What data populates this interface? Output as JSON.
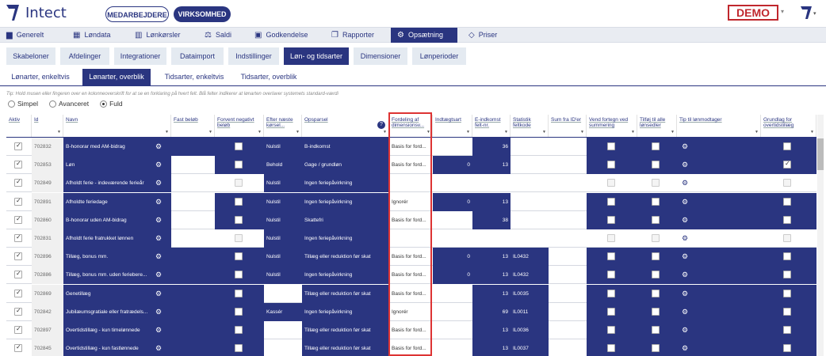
{
  "header": {
    "app_name": "Intect",
    "employees_btn": "MEDARBEJDERE",
    "company_btn": "VIRKSOMHED",
    "demo_label": "DEMO"
  },
  "nav": [
    {
      "label": "Generelt",
      "icon": "bar-chart-icon"
    },
    {
      "label": "Løndata",
      "icon": "table-icon"
    },
    {
      "label": "Lønkørsler",
      "icon": "book-icon"
    },
    {
      "label": "Saldi",
      "icon": "scale-icon"
    },
    {
      "label": "Godkendelse",
      "icon": "calendar-check-icon"
    },
    {
      "label": "Rapporter",
      "icon": "copy-icon"
    },
    {
      "label": "Opsætning",
      "icon": "gear-icon"
    },
    {
      "label": "Priser",
      "icon": "diamond-icon"
    }
  ],
  "subnav": [
    "Skabeloner",
    "Afdelinger",
    "Integrationer",
    "Dataimport",
    "Indstillinger",
    "Løn- og tidsarter",
    "Dimensioner",
    "Lønperioder"
  ],
  "tabs": [
    "Lønarter, enkeltvis",
    "Lønarter, overblik",
    "Tidsarter, enkeltvis",
    "Tidsarter, overblik"
  ],
  "tip": "Tip: Hold musen eller fingeren over en kolonneoverskrift for at se en forklaring på hvert felt. Blå felter indikerer at lønarten overlaver systemets standard-værdi",
  "view_options": [
    "Simpel",
    "Avanceret",
    "Fuld"
  ],
  "view_selected": "Fuld",
  "columns": {
    "active": "Aktiv",
    "id": "Id",
    "name": "Navn",
    "fixed_amount": "Fast beløb",
    "expect_negative": "Forvent negativt beløb",
    "after_next": "Efter næste kørsel...",
    "savings": "Opsparsel",
    "dimension_split": "Fordeling af dimensionsv...",
    "income_type": "Indtægtsart",
    "e_income_field": "E-indkomst felt-nr.",
    "stat_field": "Statistik feltkode",
    "sum_from_ids": "Sum fra ID'er",
    "flip_sign": "Vend fortegn ved summering",
    "add_to_all": "Tilføj til alle lønsedler",
    "tip_recipient": "Tip til lønmodtager",
    "base_supplement": "Grundlag for overtidstillæg"
  },
  "rows": [
    {
      "id": "702832",
      "name": "B-honorar med AM-bidrag",
      "after": "Nulstil",
      "savings": "B-indkomst",
      "dim": "Basis for ford...",
      "income": "",
      "efield": "36",
      "stat": "",
      "add_chk": false,
      "base_chk": false
    },
    {
      "id": "702853",
      "name": "Løn",
      "after": "Behold",
      "savings": "Gage / grundløn",
      "dim": "Basis for ford...",
      "income": "0",
      "efield": "13",
      "stat": "",
      "add_chk": false,
      "base_chk": true
    },
    {
      "id": "702849",
      "name": "Afholdt ferie - indeværende ferieår",
      "after": "Nulstil",
      "savings": "Ingen feriepåvirkning",
      "dim": "",
      "income": "",
      "efield": "",
      "stat": "",
      "add_chk": false,
      "base_chk": false
    },
    {
      "id": "702891",
      "name": "Afholdte feriedage",
      "after": "Nulstil",
      "savings": "Ingen feriepåvirkning",
      "dim": "Ignorér",
      "income": "0",
      "efield": "13",
      "stat": "",
      "add_chk": false,
      "base_chk": false
    },
    {
      "id": "702860",
      "name": "B-honorar uden AM-bidrag",
      "after": "Nulstil",
      "savings": "Skattefri",
      "dim": "Basis for ford...",
      "income": "",
      "efield": "38",
      "stat": "",
      "add_chk": false,
      "base_chk": false
    },
    {
      "id": "702831",
      "name": "Afholdt ferie fratrukket lønnen",
      "after": "Nulstil",
      "savings": "Ingen feriepåvirkning",
      "dim": "",
      "income": "",
      "efield": "",
      "stat": "",
      "add_chk": false,
      "base_chk": false
    },
    {
      "id": "702896",
      "name": "Tillæg, bonus mm.",
      "after": "Nulstil",
      "savings": "Tillæg eller reduktion før skat",
      "dim": "Basis for ford...",
      "income": "0",
      "efield": "13",
      "stat": "IL0432",
      "add_chk": false,
      "base_chk": false
    },
    {
      "id": "702886",
      "name": "Tillæg, bonus mm. uden feriebere...",
      "after": "Nulstil",
      "savings": "Ingen feriepåvirkning",
      "dim": "Basis for ford...",
      "income": "0",
      "efield": "13",
      "stat": "IL0432",
      "add_chk": false,
      "base_chk": false
    },
    {
      "id": "702869",
      "name": "Genetillæg",
      "after": "",
      "savings": "Tillæg eller reduktion før skat",
      "dim": "Basis for ford...",
      "income": "",
      "efield": "13",
      "stat": "IL0035",
      "add_chk": false,
      "base_chk": false
    },
    {
      "id": "702842",
      "name": "Jubilæumsgratiale eller fratrædels...",
      "after": "Kassér",
      "savings": "Ingen feriepåvirkning",
      "dim": "Ignorér",
      "income": "",
      "efield": "69",
      "stat": "IL0011",
      "add_chk": false,
      "base_chk": false
    },
    {
      "id": "702897",
      "name": "Overtidstillæg - kun timelønnede",
      "after": "",
      "savings": "Tillæg eller reduktion før skat",
      "dim": "Basis for ford...",
      "income": "",
      "efield": "13",
      "stat": "IL0036",
      "add_chk": false,
      "base_chk": false
    },
    {
      "id": "702845",
      "name": "Overtidstillæg - kun fastlønnede",
      "after": "",
      "savings": "Tillæg eller reduktion før skat",
      "dim": "Basis for ford...",
      "income": "",
      "efield": "13",
      "stat": "IL0037",
      "add_chk": false,
      "base_chk": false
    }
  ],
  "colors": {
    "brand": "#2a3580",
    "demo": "#c0272d",
    "highlight": "#dd3333"
  }
}
